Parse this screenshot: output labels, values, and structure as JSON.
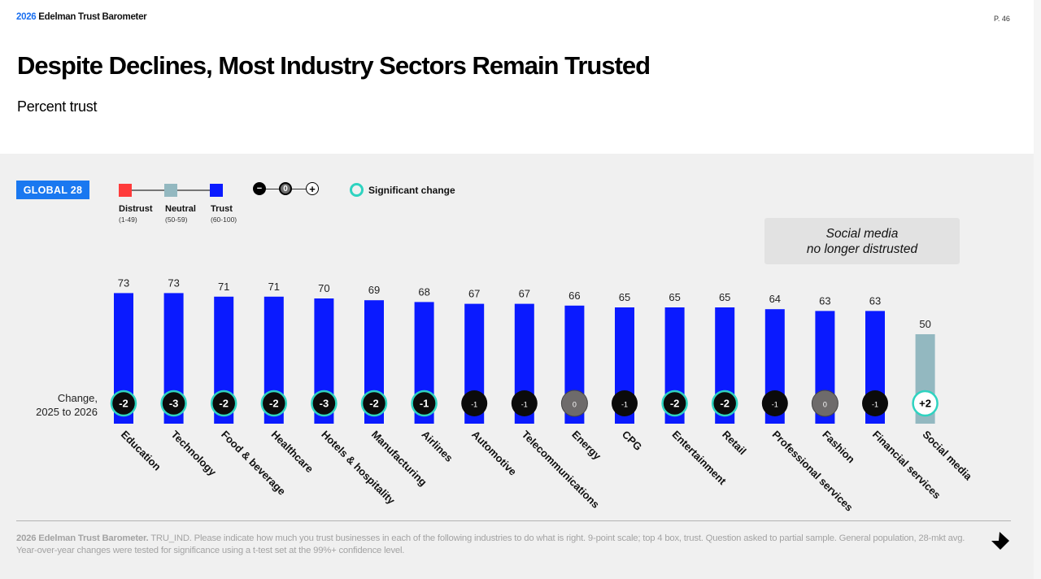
{
  "header": {
    "brand_year": "2026",
    "brand_name": "Edelman Trust Barometer",
    "page": "P. 46",
    "title": "Despite Declines, Most Industry Sectors Remain Trusted",
    "subtitle": "Percent trust"
  },
  "legend": {
    "badge": "GLOBAL 28",
    "levels": [
      {
        "label": "Distrust",
        "range": "(1-49)",
        "color": "#ff3b3b"
      },
      {
        "label": "Neutral",
        "range": "(50-59)",
        "color": "#93b8c0"
      },
      {
        "label": "Trust",
        "range": "(60-100)",
        "color": "#0a1aff"
      }
    ],
    "change_symbols": [
      "−",
      "0",
      "+"
    ],
    "significant_label": "Significant change",
    "significant_color": "#2ed3c0"
  },
  "callout": {
    "line1": "Social media",
    "line2": "no longer distrusted"
  },
  "change_label": {
    "line1": "Change,",
    "line2": "2025 to 2026"
  },
  "chart_data": {
    "type": "bar",
    "title": "Despite Declines, Most Industry Sectors Remain Trusted",
    "ylabel": "Percent trust",
    "ylim": [
      0,
      100
    ],
    "grid": false,
    "categories": [
      "Education",
      "Technology",
      "Food & beverage",
      "Healthcare",
      "Hotels & hospitality",
      "Manufacturing",
      "Airlines",
      "Automotive",
      "Telecommunications",
      "Energy",
      "CPG",
      "Entertainment",
      "Retail",
      "Professional services",
      "Fashion",
      "Financial services",
      "Social media"
    ],
    "values": [
      73,
      73,
      71,
      71,
      70,
      69,
      68,
      67,
      67,
      66,
      65,
      65,
      65,
      64,
      63,
      63,
      50
    ],
    "changes": [
      "-2",
      "-3",
      "-2",
      "-2",
      "-3",
      "-2",
      "-1",
      "-1",
      "-1",
      "0",
      "-1",
      "-2",
      "-2",
      "-1",
      "0",
      "-1",
      "+2"
    ],
    "significant": [
      true,
      true,
      true,
      true,
      true,
      true,
      true,
      false,
      false,
      false,
      false,
      true,
      true,
      false,
      false,
      false,
      true
    ],
    "bar_colors": {
      "trust": "#0a1aff",
      "neutral": "#93b8c0",
      "distrust": "#ff3b3b"
    }
  },
  "footer": {
    "source_bold": "2026 Edelman Trust Barometer.",
    "source_text": " TRU_IND. Please indicate how much you trust businesses in each of the following industries to do what is right. 9-point scale; top 4 box, trust. Question asked to partial sample. General population, 28-mkt avg. Year-over-year changes were tested for significance using a t-test set at the 99%+ confidence level."
  }
}
